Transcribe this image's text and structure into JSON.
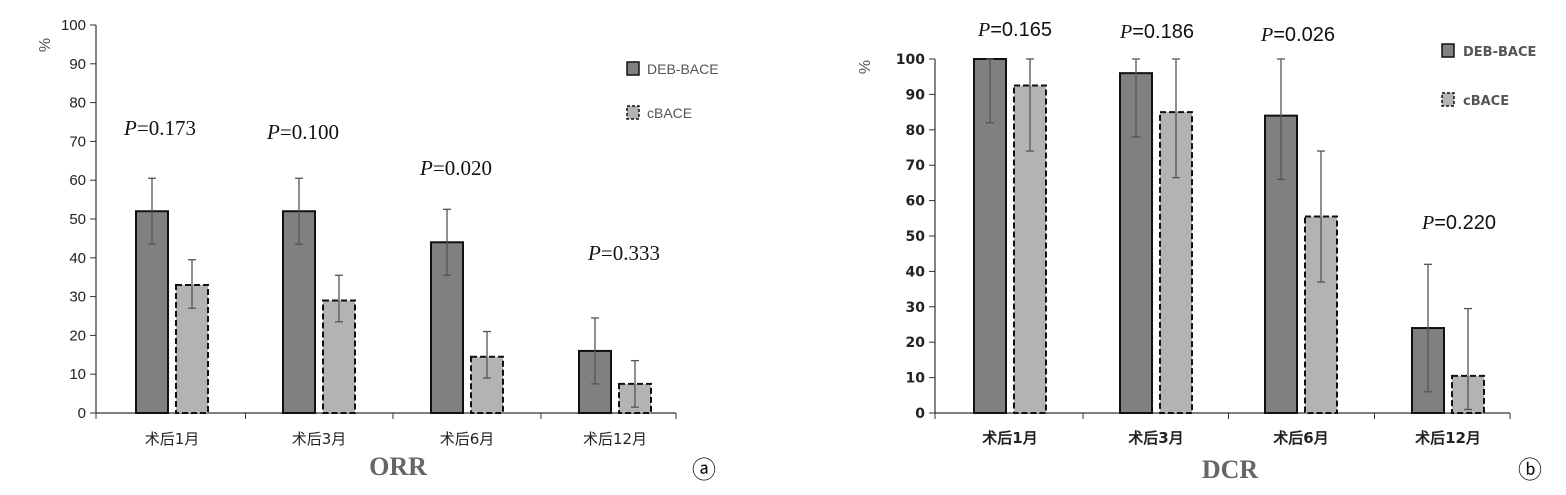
{
  "chart_data": [
    {
      "type": "bar",
      "panel_label": "ⓐ",
      "title": "ORR",
      "ylabel": "%",
      "ylim": [
        0,
        100
      ],
      "yticks": [
        "0",
        "10",
        "20",
        "30",
        "40",
        "50",
        "60",
        "70",
        "80",
        "90",
        "100"
      ],
      "categories": [
        "术后1月",
        "术后3月",
        "术后6月",
        "术后12月"
      ],
      "series": [
        {
          "name": "DEB-BACE",
          "color": "#808080",
          "values": [
            52,
            52,
            44,
            16
          ],
          "err_low": [
            43.5,
            43.5,
            35.5,
            7.5
          ],
          "err_high": [
            60.5,
            60.5,
            52.5,
            24.5
          ]
        },
        {
          "name": "cBACE",
          "color": "#b3b3b3",
          "values": [
            33,
            29,
            14.5,
            7.5
          ],
          "err_low": [
            27,
            23.5,
            9,
            1.5
          ],
          "err_high": [
            39.5,
            35.5,
            21,
            13.5
          ]
        }
      ],
      "p_values": [
        "P=0.173",
        "P=0.100",
        "P=0.020",
        "P=0.333"
      ],
      "legend_position": "top-right"
    },
    {
      "type": "bar",
      "panel_label": "ⓑ",
      "title": "DCR",
      "ylabel": "%",
      "ylim": [
        0,
        100
      ],
      "yticks": [
        "0",
        "10",
        "20",
        "30",
        "40",
        "50",
        "60",
        "70",
        "80",
        "90",
        "100"
      ],
      "categories": [
        "术后1月",
        "术后3月",
        "术后6月",
        "术后12月"
      ],
      "series": [
        {
          "name": "DEB-BACE",
          "color": "#808080",
          "values": [
            100,
            96,
            84,
            24
          ],
          "err_low": [
            82,
            78,
            66,
            6
          ],
          "err_high": [
            100,
            100,
            100,
            42
          ]
        },
        {
          "name": "cBACE",
          "color": "#b3b3b3",
          "values": [
            92.5,
            85,
            55.5,
            10.5
          ],
          "err_low": [
            74,
            66.5,
            37,
            1
          ],
          "err_high": [
            100,
            100,
            74,
            29.5
          ]
        }
      ],
      "p_values": [
        "P=0.165",
        "P=0.186",
        "P=0.026",
        "P=0.220"
      ],
      "legend_position": "top-right"
    }
  ]
}
